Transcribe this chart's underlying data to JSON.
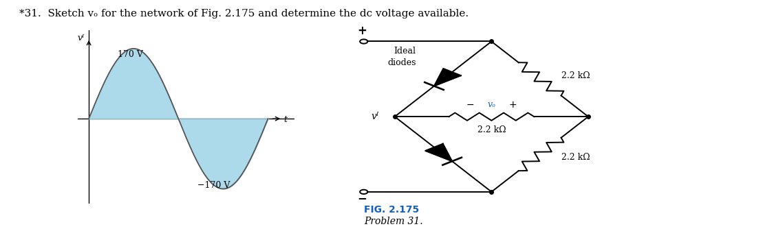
{
  "title_text": "*31.  Sketch vₒ for the network of Fig. 2.175 and determine the dc voltage available.",
  "title_fontsize": 11,
  "fig_caption": "FIG. 2.175",
  "fig_caption2": "Problem 31.",
  "sine_amplitude": 170,
  "sine_label_pos": "170 V",
  "sine_label_neg": "−170 V",
  "vi_label": "vᴵ",
  "t_label": "t",
  "sine_fill_color": "#9FD4E8",
  "background_color": "#ffffff",
  "circuit_vi_label": "vᴵ",
  "ideal_diodes_label": "Ideal\ndiodes",
  "resistor_labels": [
    "2.2 kΩ",
    "2.2 kΩ",
    "2.2 kΩ"
  ],
  "vo_label": "vₒ",
  "fig_label_color": "#1560bd",
  "text_color": "#000000",
  "blue_bg_color": "#87CEEB"
}
